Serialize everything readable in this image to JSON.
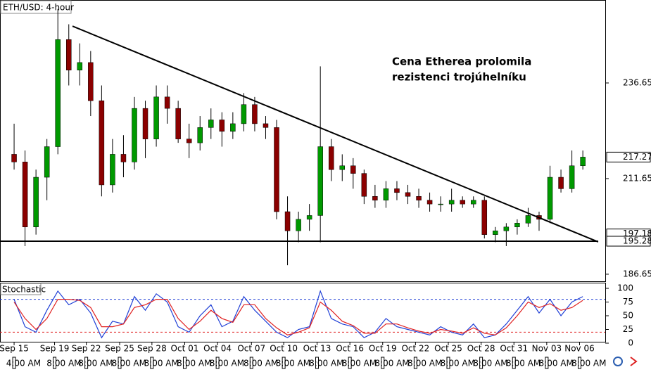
{
  "chart_data": [
    {
      "type": "candlestick",
      "title": "ETH/USD: 4-hour",
      "annotation": [
        "Cena Etherea prolomila",
        "rezistenci trojúhelníku"
      ],
      "x": [
        0,
        1,
        2,
        3,
        4,
        5,
        6,
        7,
        8,
        9,
        10,
        11,
        12,
        13,
        14,
        15,
        16,
        17,
        18,
        19,
        20,
        21,
        22,
        23,
        24,
        25,
        26,
        27,
        28,
        29,
        30,
        31,
        32,
        33,
        34,
        35,
        36,
        37,
        38,
        39,
        40,
        41,
        42,
        43,
        44,
        45,
        46,
        47,
        48,
        49,
        50,
        51,
        52
      ],
      "open": [
        218,
        216,
        199,
        212,
        220,
        248,
        240,
        242,
        232,
        210,
        218,
        216,
        230,
        222,
        233,
        230,
        222,
        221,
        225,
        227,
        224,
        226,
        231,
        226,
        225,
        203,
        198,
        201,
        202,
        220,
        214,
        215,
        213,
        207,
        206,
        209,
        208,
        207,
        206,
        205,
        205,
        206,
        205,
        206,
        197,
        198,
        199,
        200,
        202,
        201,
        212,
        209,
        215
      ],
      "high": [
        226,
        219,
        214,
        222,
        256,
        252,
        247,
        245,
        236,
        222,
        223,
        233,
        232,
        236,
        236,
        232,
        226,
        228,
        230,
        229,
        229,
        234,
        233,
        228,
        227,
        207,
        203,
        205,
        241,
        222,
        218,
        217,
        214,
        210,
        211,
        211,
        210,
        209,
        208,
        207,
        209,
        207,
        207,
        207,
        199,
        200,
        201,
        204,
        203,
        215,
        214,
        219,
        219
      ],
      "low": [
        214,
        194,
        197,
        206,
        218,
        236,
        236,
        228,
        207,
        208,
        212,
        214,
        217,
        220,
        226,
        221,
        217,
        219,
        222,
        220,
        222,
        224,
        224,
        222,
        201,
        189,
        195,
        198,
        195,
        211,
        211,
        209,
        205,
        204,
        204,
        206,
        205,
        204,
        203,
        203,
        203,
        204,
        204,
        196,
        195,
        194,
        197,
        199,
        198,
        200,
        208,
        208,
        214
      ],
      "close": [
        216,
        199,
        212,
        220,
        248,
        240,
        242,
        232,
        210,
        218,
        216,
        230,
        222,
        233,
        230,
        222,
        221,
        225,
        227,
        224,
        226,
        231,
        226,
        225,
        203,
        198,
        201,
        202,
        220,
        214,
        215,
        213,
        207,
        206,
        209,
        208,
        207,
        206,
        205,
        205,
        206,
        205,
        206,
        197,
        198,
        199,
        200,
        202,
        201,
        212,
        209,
        215,
        217.27
      ],
      "up_color": "#009900",
      "down_color": "#8b0000",
      "xlim": [
        -1.29,
        54.05
      ],
      "xticks": [
        {
          "value": 0,
          "label": "Sep 15"
        },
        {
          "value": 3.7,
          "label": "Sep 19"
        },
        {
          "value": 6.6,
          "label": "Sep 22"
        },
        {
          "value": 9.65,
          "label": "Sep 25"
        },
        {
          "value": 12.6,
          "label": "Sep 28"
        },
        {
          "value": 15.6,
          "label": "Oct 01"
        },
        {
          "value": 18.6,
          "label": "Oct 04"
        },
        {
          "value": 21.7,
          "label": "Oct 07"
        },
        {
          "value": 24.65,
          "label": "Oct 10"
        },
        {
          "value": 27.7,
          "label": "Oct 13"
        },
        {
          "value": 30.7,
          "label": "Oct 16"
        },
        {
          "value": 33.7,
          "label": "Oct 19"
        },
        {
          "value": 36.7,
          "label": "Oct 22"
        },
        {
          "value": 39.7,
          "label": "Oct 25"
        },
        {
          "value": 42.7,
          "label": "Oct 28"
        },
        {
          "value": 45.7,
          "label": "Oct 31"
        },
        {
          "value": 48.7,
          "label": "Nov 03"
        },
        {
          "value": 51.7,
          "label": "Nov 06"
        }
      ],
      "xtick_times": [
        "4:00 AM",
        "8:00 AM",
        "8:00 AM",
        "8:00 AM",
        "8:00 AM",
        "8:00 AM",
        "8:00 AM",
        "8:00 AM",
        "8:00 AM",
        "8:00 AM",
        "8:00 AM",
        "8:00 AM",
        "8:00 AM",
        "8:00 AM",
        "8:00 AM",
        "8:00 AM",
        "8:00 AM",
        "8:00 AM"
      ],
      "ylim": [
        184.8,
        258.34
      ],
      "yticks": [
        236.65,
        211.65,
        186.65
      ],
      "price_labels": [
        217.27,
        197.18,
        195.28
      ],
      "trendline": {
        "x": [
          5.34,
          53.4
        ],
        "y": [
          251.5,
          195.1
        ]
      },
      "support": 195.28
    },
    {
      "type": "line",
      "title": "Stochastic",
      "x": [
        0,
        1,
        2,
        3,
        4,
        5,
        6,
        7,
        8,
        9,
        10,
        11,
        12,
        13,
        14,
        15,
        16,
        17,
        18,
        19,
        20,
        21,
        22,
        23,
        24,
        25,
        26,
        27,
        28,
        29,
        30,
        31,
        32,
        33,
        34,
        35,
        36,
        37,
        38,
        39,
        40,
        41,
        42,
        43,
        44,
        45,
        46,
        47,
        48,
        49,
        50,
        51,
        52
      ],
      "series": [
        {
          "color": "#1f3fd6",
          "values": [
            80,
            30,
            20,
            60,
            95,
            70,
            80,
            55,
            10,
            40,
            35,
            85,
            60,
            90,
            75,
            30,
            20,
            50,
            70,
            30,
            40,
            85,
            60,
            40,
            20,
            10,
            25,
            30,
            95,
            45,
            35,
            30,
            10,
            20,
            45,
            30,
            25,
            20,
            15,
            30,
            20,
            15,
            35,
            10,
            15,
            35,
            60,
            85,
            55,
            80,
            50,
            75,
            85
          ]
        },
        {
          "color": "#e02020",
          "values": [
            75,
            45,
            25,
            45,
            80,
            80,
            78,
            65,
            30,
            30,
            35,
            65,
            70,
            80,
            80,
            45,
            25,
            40,
            60,
            45,
            38,
            70,
            70,
            45,
            28,
            15,
            20,
            28,
            75,
            60,
            40,
            32,
            18,
            18,
            35,
            35,
            28,
            22,
            18,
            25,
            22,
            18,
            28,
            18,
            15,
            28,
            50,
            75,
            65,
            72,
            60,
            65,
            78
          ]
        }
      ],
      "levels": [
        80,
        20
      ],
      "xlim": [
        -1.29,
        54.05
      ],
      "ylim": [
        -15.4,
        110.3
      ],
      "yticks": [
        100,
        75,
        50,
        25,
        0
      ]
    }
  ]
}
